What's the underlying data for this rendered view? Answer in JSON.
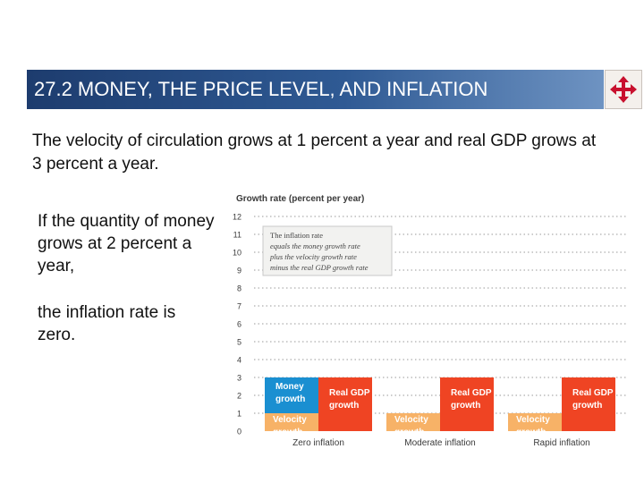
{
  "title": "27.2  MONEY, THE PRICE LEVEL, AND INFLATION",
  "nav_icon": "move-arrows-icon",
  "intro": "The velocity of circulation grows at 1 percent a year and real GDP grows at 3 percent a year.",
  "side_text": {
    "part1": "If the quantity of money grows at 2 percent a year,",
    "part2": "the inflation rate is zero."
  },
  "chart_data": {
    "type": "bar",
    "stacked": true,
    "title": "",
    "ylabel": "Growth rate (percent per year)",
    "ylim": [
      0,
      12
    ],
    "yticks": [
      0,
      1,
      2,
      3,
      4,
      5,
      6,
      7,
      8,
      9,
      10,
      11,
      12
    ],
    "grid": true,
    "annotation_lines": [
      "The inflation rate",
      "equals the money growth rate",
      "plus the velocity growth rate",
      "minus the real GDP growth rate"
    ],
    "categories": [
      "Zero inflation",
      "Moderate inflation",
      "Rapid inflation"
    ],
    "series": [
      {
        "name": "Velocity growth",
        "stack": "money",
        "color": "#f7b267",
        "label": [
          "Velocity",
          "growth"
        ],
        "values": [
          1,
          1,
          1
        ]
      },
      {
        "name": "Money growth",
        "stack": "money",
        "color": "#1a8fd1",
        "label": [
          "Money",
          "growth"
        ],
        "values": [
          2,
          null,
          null
        ]
      },
      {
        "name": "Real GDP growth",
        "stack": "gdp",
        "color": "#ef4423",
        "label": [
          "Real GDP",
          "growth"
        ],
        "values": [
          3,
          3,
          3
        ]
      }
    ],
    "colors": {
      "velocity": "#f7b267",
      "money": "#1a8fd1",
      "real_gdp": "#ef4423",
      "label_text": "#ffffff",
      "axis_text": "#3a3a3a"
    }
  }
}
